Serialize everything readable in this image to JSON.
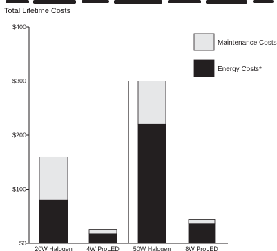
{
  "chart_data": {
    "type": "bar",
    "stacked": true,
    "title": "Total Lifetime Costs",
    "categories": [
      "20W Halogen",
      "4W ProLED",
      "50W Halogen",
      "8W ProLED"
    ],
    "series": [
      {
        "name": "Energy Costs*",
        "values": [
          80,
          18,
          220,
          36
        ],
        "color": "#231f20"
      },
      {
        "name": "Maintenance Costs",
        "values": [
          80,
          8,
          80,
          8
        ],
        "color": "#e6e7e8"
      }
    ],
    "ylim": [
      0,
      400
    ],
    "yticks": [
      0,
      100,
      200,
      300,
      400
    ],
    "ytick_labels": [
      "$0",
      "$100",
      "$200",
      "$300",
      "$400"
    ],
    "grid": false,
    "legend_position": "top-right",
    "group_divider": true
  }
}
